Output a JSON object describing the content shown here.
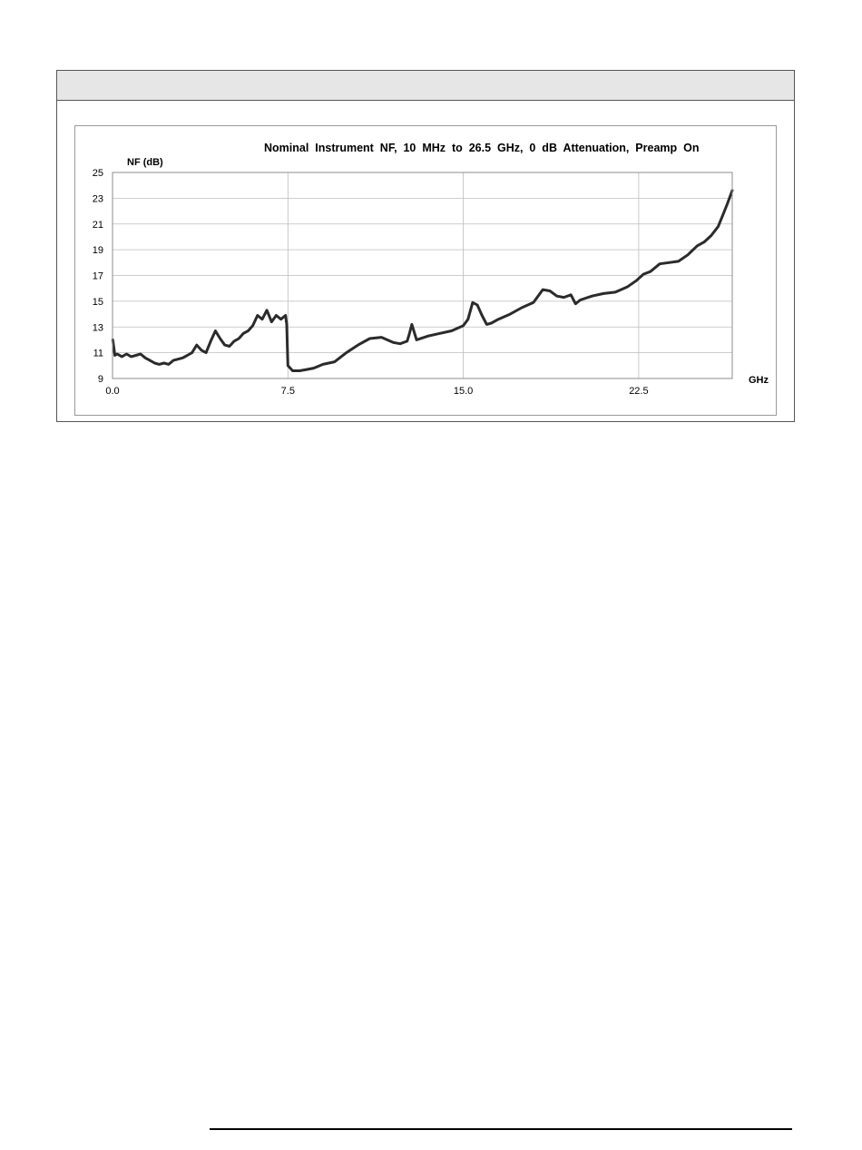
{
  "panel": {
    "header_text": ""
  },
  "chart_data": {
    "type": "line",
    "title": "Nominal  Instrument  NF,  10  MHz  to  26.5  GHz,  0  dB  Attenuation,  Preamp  On",
    "ylabel": "NF (dB)",
    "xlabel": "GHz",
    "xlim": [
      0,
      26.5
    ],
    "ylim": [
      9,
      25
    ],
    "x_ticks": [
      "0.0",
      "7.5",
      "15.0",
      "22.5"
    ],
    "x_tick_values": [
      0,
      7.5,
      15,
      22.5
    ],
    "y_ticks": [
      "9",
      "11",
      "13",
      "15",
      "17",
      "19",
      "21",
      "23",
      "25"
    ],
    "y_tick_values": [
      9,
      11,
      13,
      15,
      17,
      19,
      21,
      23,
      25
    ],
    "grid": true,
    "line_color": "#2b2b2b",
    "series": [
      {
        "x": [
          0.01,
          0.1,
          0.2,
          0.4,
          0.6,
          0.8,
          1.0,
          1.2,
          1.4,
          1.6,
          1.8,
          2.0,
          2.2,
          2.4,
          2.6,
          2.8,
          3.0,
          3.2,
          3.4,
          3.6,
          3.8,
          4.0,
          4.2,
          4.4,
          4.6,
          4.8,
          5.0,
          5.2,
          5.4,
          5.6,
          5.8,
          6.0,
          6.2,
          6.4,
          6.6,
          6.8,
          7.0,
          7.2,
          7.4,
          7.45,
          7.5,
          7.6,
          7.7,
          8.0,
          8.3,
          8.6,
          9.0,
          9.5,
          10.0,
          10.5,
          11.0,
          11.5,
          12.0,
          12.3,
          12.6,
          12.7,
          12.8,
          13.0,
          13.5,
          14.0,
          14.5,
          15.0,
          15.2,
          15.4,
          15.6,
          15.8,
          16.0,
          16.2,
          16.5,
          17.0,
          17.5,
          18.0,
          18.4,
          18.7,
          19.0,
          19.3,
          19.6,
          19.8,
          20.0,
          20.5,
          21.0,
          21.5,
          22.0,
          22.4,
          22.7,
          23.0,
          23.4,
          23.8,
          24.2,
          24.6,
          25.0,
          25.3,
          25.6,
          25.9,
          26.1,
          26.3,
          26.5
        ],
        "y": [
          12.0,
          10.8,
          10.9,
          10.7,
          10.9,
          10.7,
          10.8,
          10.9,
          10.6,
          10.4,
          10.2,
          10.1,
          10.2,
          10.1,
          10.4,
          10.5,
          10.6,
          10.8,
          11.0,
          11.6,
          11.2,
          11.0,
          11.9,
          12.7,
          12.1,
          11.6,
          11.5,
          11.9,
          12.1,
          12.5,
          12.7,
          13.1,
          13.9,
          13.6,
          14.3,
          13.4,
          13.9,
          13.6,
          13.9,
          13.2,
          10.0,
          9.8,
          9.6,
          9.6,
          9.7,
          9.8,
          10.1,
          10.3,
          11.0,
          11.6,
          12.1,
          12.2,
          11.8,
          11.7,
          11.9,
          12.5,
          13.2,
          12.0,
          12.3,
          12.5,
          12.7,
          13.1,
          13.6,
          14.9,
          14.7,
          13.9,
          13.2,
          13.3,
          13.6,
          14.0,
          14.5,
          14.9,
          15.9,
          15.8,
          15.4,
          15.3,
          15.5,
          14.8,
          15.1,
          15.4,
          15.6,
          15.7,
          16.1,
          16.6,
          17.1,
          17.3,
          17.9,
          18.0,
          18.1,
          18.6,
          19.3,
          19.6,
          20.1,
          20.8,
          21.7,
          22.6,
          23.6
        ]
      }
    ]
  }
}
